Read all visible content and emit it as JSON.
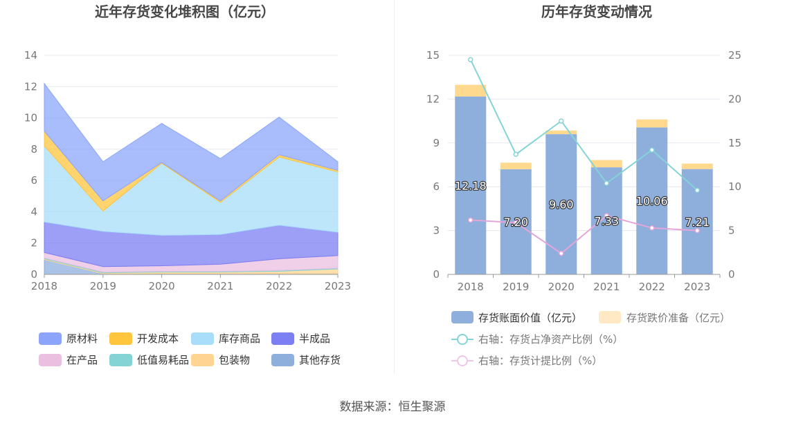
{
  "source_label": "数据来源：恒生聚源",
  "chart_data": [
    {
      "type": "area",
      "stacked": true,
      "title": "近年存货变化堆积图（亿元）",
      "categories": [
        "2018",
        "2019",
        "2020",
        "2021",
        "2022",
        "2023"
      ],
      "ylim": [
        0,
        14
      ],
      "yticks": [
        0,
        2,
        4,
        6,
        8,
        10,
        12,
        14
      ],
      "grid": true,
      "legend_position": "bottom",
      "series": [
        {
          "name": "其他存货",
          "color": "#8eaedc",
          "values": [
            0.95,
            0.05,
            0.05,
            0.05,
            0.05,
            0.05
          ]
        },
        {
          "name": "包装物",
          "color": "#ffd591",
          "values": [
            0.05,
            0.05,
            0.1,
            0.1,
            0.15,
            0.3
          ]
        },
        {
          "name": "低值易耗品",
          "color": "#84d4d6",
          "values": [
            0.05,
            0.05,
            0.05,
            0.05,
            0.05,
            0.05
          ]
        },
        {
          "name": "在产品",
          "color": "#ebbfe0",
          "values": [
            0.35,
            0.35,
            0.35,
            0.45,
            0.75,
            0.8
          ]
        },
        {
          "name": "半成品",
          "color": "#7b7ff2",
          "values": [
            1.95,
            2.25,
            1.95,
            1.9,
            2.15,
            1.5
          ]
        },
        {
          "name": "库存商品",
          "color": "#a8defa",
          "values": [
            4.85,
            1.3,
            4.6,
            2.05,
            4.35,
            3.85
          ]
        },
        {
          "name": "开发成本",
          "color": "#ffc53d",
          "values": [
            0.95,
            0.65,
            0.05,
            0.1,
            0.15,
            0.1
          ]
        },
        {
          "name": "原材料",
          "color": "#8ca5fb",
          "values": [
            3.05,
            2.5,
            2.5,
            2.7,
            2.4,
            0.55
          ]
        }
      ],
      "legend_order": [
        "原材料",
        "开发成本",
        "库存商品",
        "半成品",
        "在产品",
        "低值易耗品",
        "包装物",
        "其他存货"
      ]
    },
    {
      "type": "bar",
      "stacked": true,
      "title": "历年存货变动情况",
      "categories": [
        "2018",
        "2019",
        "2020",
        "2021",
        "2022",
        "2023"
      ],
      "ylim": [
        0,
        15
      ],
      "yticks": [
        0,
        3,
        6,
        9,
        12,
        15
      ],
      "y2lim": [
        0,
        25
      ],
      "y2ticks": [
        0,
        5,
        10,
        15,
        20,
        25
      ],
      "grid": true,
      "legend_position": "bottom",
      "bar_series": [
        {
          "name": "存货账面价值（亿元）",
          "color": "#8eaedc",
          "values": [
            12.18,
            7.2,
            9.6,
            7.33,
            10.06,
            7.21
          ],
          "labels": [
            "12.18",
            "7.20",
            "9.60",
            "7.33",
            "10.06",
            "7.21"
          ]
        },
        {
          "name": "存货跌价准备（亿元）",
          "color": "#ffd98e",
          "legend_color": "#ffe9c4",
          "values": [
            0.8,
            0.45,
            0.25,
            0.5,
            0.55,
            0.38
          ]
        }
      ],
      "line_series": [
        {
          "name": "右轴：存货占净资产比例（%）",
          "color": "#84d4d6",
          "values": [
            24.5,
            13.7,
            17.5,
            10.4,
            14.2,
            9.6
          ]
        },
        {
          "name": "右轴：存货计提比例（%）",
          "color": "#e4a6d8",
          "legend_color": "#f0c6e6",
          "values": [
            6.2,
            5.9,
            2.4,
            6.7,
            5.3,
            5.0
          ]
        }
      ]
    }
  ]
}
